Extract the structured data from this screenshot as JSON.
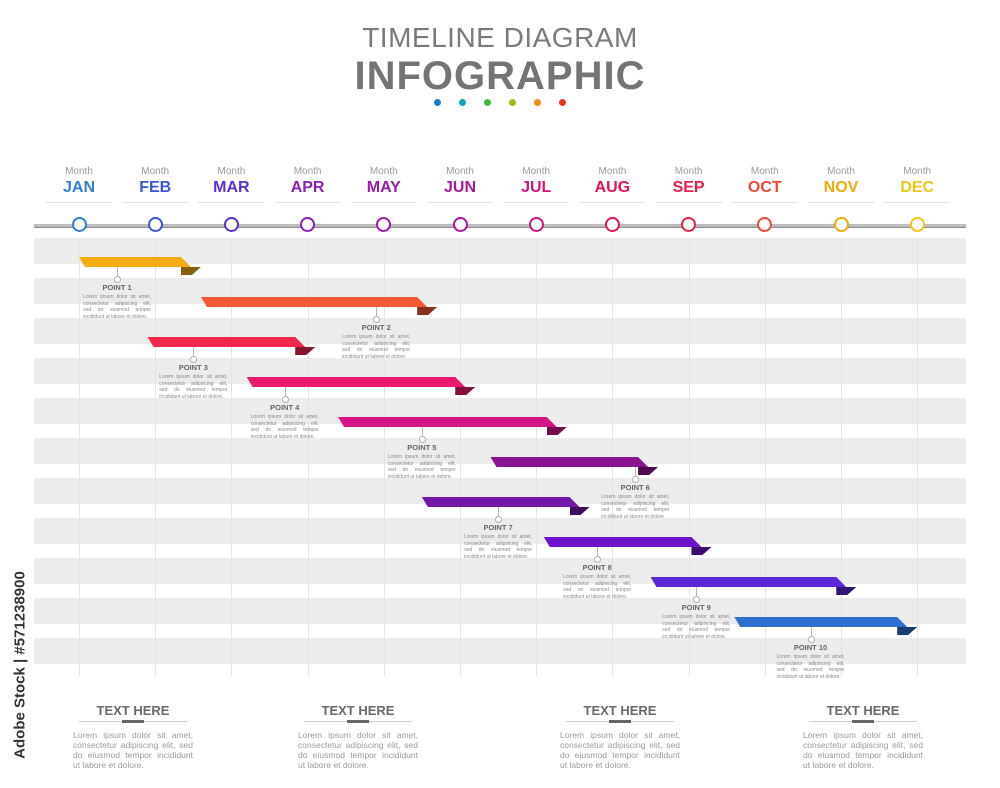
{
  "header": {
    "title_line1": "TIMELINE DIAGRAM",
    "title_line2": "INFOGRAPHIC",
    "dot_colors": [
      "#1e7ec8",
      "#19a3b8",
      "#3dbb3b",
      "#9bbd1e",
      "#f08a1c",
      "#e6381e"
    ]
  },
  "months": [
    {
      "label": "Month",
      "name": "JAN",
      "color": "#2f7fd6"
    },
    {
      "label": "Month",
      "name": "FEB",
      "color": "#3c55d8"
    },
    {
      "label": "Month",
      "name": "MAR",
      "color": "#5b2fd1"
    },
    {
      "label": "Month",
      "name": "APR",
      "color": "#8a1fb8"
    },
    {
      "label": "Month",
      "name": "MAY",
      "color": "#9b1ab0"
    },
    {
      "label": "Month",
      "name": "JUN",
      "color": "#a8179e"
    },
    {
      "label": "Month",
      "name": "JUL",
      "color": "#d0147e"
    },
    {
      "label": "Month",
      "name": "AUG",
      "color": "#e5125a"
    },
    {
      "label": "Month",
      "name": "SEP",
      "color": "#ec1e47"
    },
    {
      "label": "Month",
      "name": "OCT",
      "color": "#f0473a"
    },
    {
      "label": "Month",
      "name": "NOV",
      "color": "#f2a80c"
    },
    {
      "label": "Month",
      "name": "DEC",
      "color": "#f2c518"
    }
  ],
  "points": [
    {
      "title": "POINT 1",
      "text": "Lorem ipsum dolor sit amet, consectetur adipiscing elit, sed do eiusmod tempor incididunt ut labore et dolore.",
      "start_month": 1.0,
      "end_month": 2.6,
      "pin_month": 1.5,
      "color": "#f3ac14"
    },
    {
      "title": "POINT 2",
      "text": "Lorem ipsum dolor sit amet, consectetur adipiscing elit, sed do eiusmod tempor incididunt ut labore et dolore.",
      "start_month": 2.6,
      "end_month": 5.7,
      "pin_month": 4.9,
      "color": "#f25a36"
    },
    {
      "title": "POINT 3",
      "text": "Lorem ipsum dolor sit amet, consectetur adipiscing elit, sed do eiusmod tempor incididunt ut labore et dolore.",
      "start_month": 1.9,
      "end_month": 4.1,
      "pin_month": 2.5,
      "color": "#f1284e"
    },
    {
      "title": "POINT 4",
      "text": "Lorem ipsum dolor sit amet, consectetur adipiscing elit, sed do eiusmod tempor incididunt ut labore et dolore.",
      "start_month": 3.2,
      "end_month": 6.2,
      "pin_month": 3.7,
      "color": "#ec1a6e"
    },
    {
      "title": "POINT 5",
      "text": "Lorem ipsum dolor sit amet, consectetur adipiscing elit, sed do eiusmod tempor incididunt ut labore et dolore.",
      "start_month": 4.4,
      "end_month": 7.4,
      "pin_month": 5.5,
      "color": "#d51586"
    },
    {
      "title": "POINT 6",
      "text": "Lorem ipsum dolor sit amet, consectetur adipiscing elit, sed do eiusmod tempor incididunt ut labore et dolore.",
      "start_month": 6.4,
      "end_month": 8.6,
      "pin_month": 8.3,
      "color": "#8a148f"
    },
    {
      "title": "POINT 7",
      "text": "Lorem ipsum dolor sit amet, consectetur adipiscing elit, sed do eiusmod tempor incididunt ut labore et dolore.",
      "start_month": 5.5,
      "end_month": 7.7,
      "pin_month": 6.5,
      "color": "#7318a6"
    },
    {
      "title": "POINT 8",
      "text": "Lorem ipsum dolor sit amet, consectetur adipiscing elit, sed do eiusmod tempor incididunt ut labore et dolore.",
      "start_month": 7.1,
      "end_month": 9.3,
      "pin_month": 7.8,
      "color": "#6e14cc"
    },
    {
      "title": "POINT 9",
      "text": "Lorem ipsum dolor sit amet, consectetur adipiscing elit, sed do eiusmod tempor incididunt ut labore et dolore.",
      "start_month": 8.5,
      "end_month": 11.2,
      "pin_month": 9.1,
      "color": "#5a28d6"
    },
    {
      "title": "POINT 10",
      "text": "Lorem ipsum dolor sit amet, consectetur adipiscing elit, sed do eiusmod tempor incididunt ut labore et dolore.",
      "start_month": 9.6,
      "end_month": 12.0,
      "pin_month": 10.6,
      "color": "#2f6fd0"
    }
  ],
  "footer": [
    {
      "title": "TEXT HERE",
      "text": "Lorem ipsum dolor sit amet, consectetur adipiscing elit, sed do eiusmod tempor incididunt ut labore et dolore."
    },
    {
      "title": "TEXT HERE",
      "text": "Lorem ipsum dolor sit amet, consectetur adipiscing elit, sed do eiusmod tempor incididunt ut labore et dolore."
    },
    {
      "title": "TEXT HERE",
      "text": "Lorem ipsum dolor sit amet, consectetur adipiscing elit, sed do eiusmod tempor incididunt ut labore et dolore."
    },
    {
      "title": "TEXT HERE",
      "text": "Lorem ipsum dolor sit amet, consectetur adipiscing elit, sed do eiusmod tempor incididunt ut labore et dolore."
    }
  ],
  "watermark": "Adobe Stock | #571238900"
}
